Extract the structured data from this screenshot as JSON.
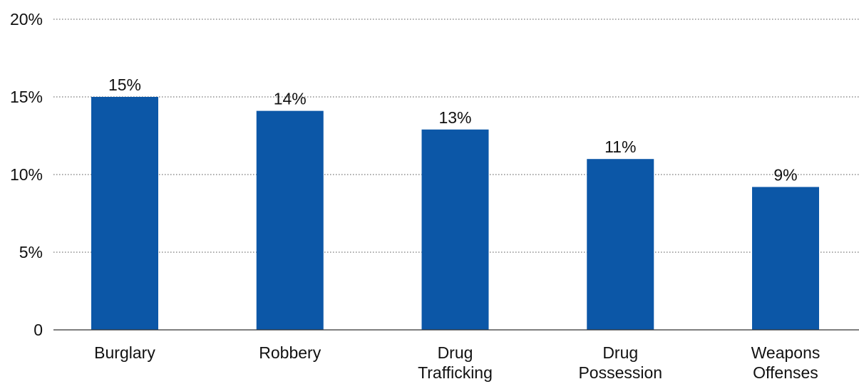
{
  "chart_data": {
    "type": "bar",
    "categories": [
      "Burglary",
      "Robbery",
      "Drug Trafficking",
      "Drug Possession",
      "Weapons Offenses"
    ],
    "category_lines": [
      [
        "Burglary"
      ],
      [
        "Robbery"
      ],
      [
        "Drug",
        "Trafficking"
      ],
      [
        "Drug",
        "Possession"
      ],
      [
        "Weapons",
        "Offenses"
      ]
    ],
    "values": [
      15,
      14.1,
      12.9,
      11,
      9.2
    ],
    "data_labels": [
      "15%",
      "14%",
      "13%",
      "11%",
      "9%"
    ],
    "ylim": [
      0,
      20
    ],
    "yticks": [
      0,
      5,
      10,
      15,
      20
    ],
    "ytick_labels": [
      "0",
      "5%",
      "10%",
      "15%",
      "20%"
    ],
    "grid": true,
    "bar_color": "#0c57a7",
    "title": "",
    "xlabel": "",
    "ylabel": ""
  }
}
